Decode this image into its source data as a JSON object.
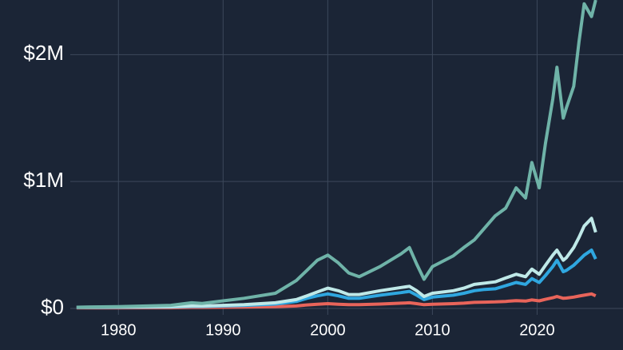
{
  "chart_data": {
    "type": "line",
    "x": [
      1976,
      1980,
      1985,
      1987,
      1988,
      1990,
      1992,
      1995,
      1997,
      1998,
      1999,
      2000,
      2001,
      2002,
      2003,
      2005,
      2007,
      2007.8,
      2008.5,
      2009.2,
      2010,
      2012,
      2013,
      2014,
      2015,
      2016,
      2017,
      2018,
      2018.9,
      2019.5,
      2020.2,
      2020.8,
      2021.5,
      2021.9,
      2022.5,
      2022.8,
      2023.5,
      2024,
      2024.5,
      2025.2,
      2025.6
    ],
    "series": [
      {
        "color": "#e8645a",
        "values": [
          5000,
          5000,
          6000,
          8000,
          8000,
          10000,
          11000,
          14000,
          20000,
          28000,
          34000,
          38000,
          34000,
          30000,
          30000,
          35000,
          42000,
          45000,
          38000,
          30000,
          34000,
          38000,
          42000,
          48000,
          50000,
          52000,
          56000,
          62000,
          58000,
          68000,
          60000,
          72000,
          85000,
          95000,
          80000,
          82000,
          90000,
          98000,
          105000,
          115000,
          100000
        ]
      },
      {
        "color": "#2fa7e0",
        "values": [
          8000,
          10000,
          12000,
          16000,
          16000,
          20000,
          24000,
          35000,
          55000,
          80000,
          100000,
          115000,
          100000,
          80000,
          80000,
          105000,
          125000,
          135000,
          105000,
          70000,
          90000,
          105000,
          120000,
          140000,
          150000,
          155000,
          180000,
          205000,
          190000,
          235000,
          205000,
          260000,
          330000,
          380000,
          290000,
          300000,
          340000,
          380000,
          420000,
          460000,
          390000
        ]
      },
      {
        "color": "#bfe9e8",
        "values": [
          10000,
          12000,
          15000,
          20000,
          20000,
          25000,
          30000,
          45000,
          70000,
          100000,
          130000,
          160000,
          140000,
          110000,
          110000,
          140000,
          165000,
          175000,
          140000,
          95000,
          120000,
          140000,
          160000,
          190000,
          200000,
          210000,
          240000,
          270000,
          250000,
          310000,
          270000,
          340000,
          420000,
          460000,
          380000,
          400000,
          480000,
          560000,
          650000,
          710000,
          600000
        ]
      },
      {
        "color": "#6fb3a8",
        "values": [
          10000,
          15000,
          25000,
          45000,
          40000,
          60000,
          80000,
          120000,
          220000,
          300000,
          380000,
          420000,
          360000,
          280000,
          250000,
          330000,
          430000,
          480000,
          350000,
          230000,
          330000,
          415000,
          480000,
          540000,
          635000,
          730000,
          790000,
          950000,
          870000,
          1150000,
          950000,
          1300000,
          1650000,
          1900000,
          1500000,
          1580000,
          1750000,
          2100000,
          2400000,
          2300000,
          2430000
        ]
      }
    ],
    "xlim": [
      1975.4,
      2026.3
    ],
    "xticks": [
      1980,
      1990,
      2000,
      2010,
      2020
    ],
    "ylim": [
      -50000,
      2430000
    ],
    "yticks": [
      {
        "value": 0,
        "label": "$0"
      },
      {
        "value": 1000000,
        "label": "$1M"
      },
      {
        "value": 2000000,
        "label": "$2M"
      }
    ],
    "grid": true
  }
}
